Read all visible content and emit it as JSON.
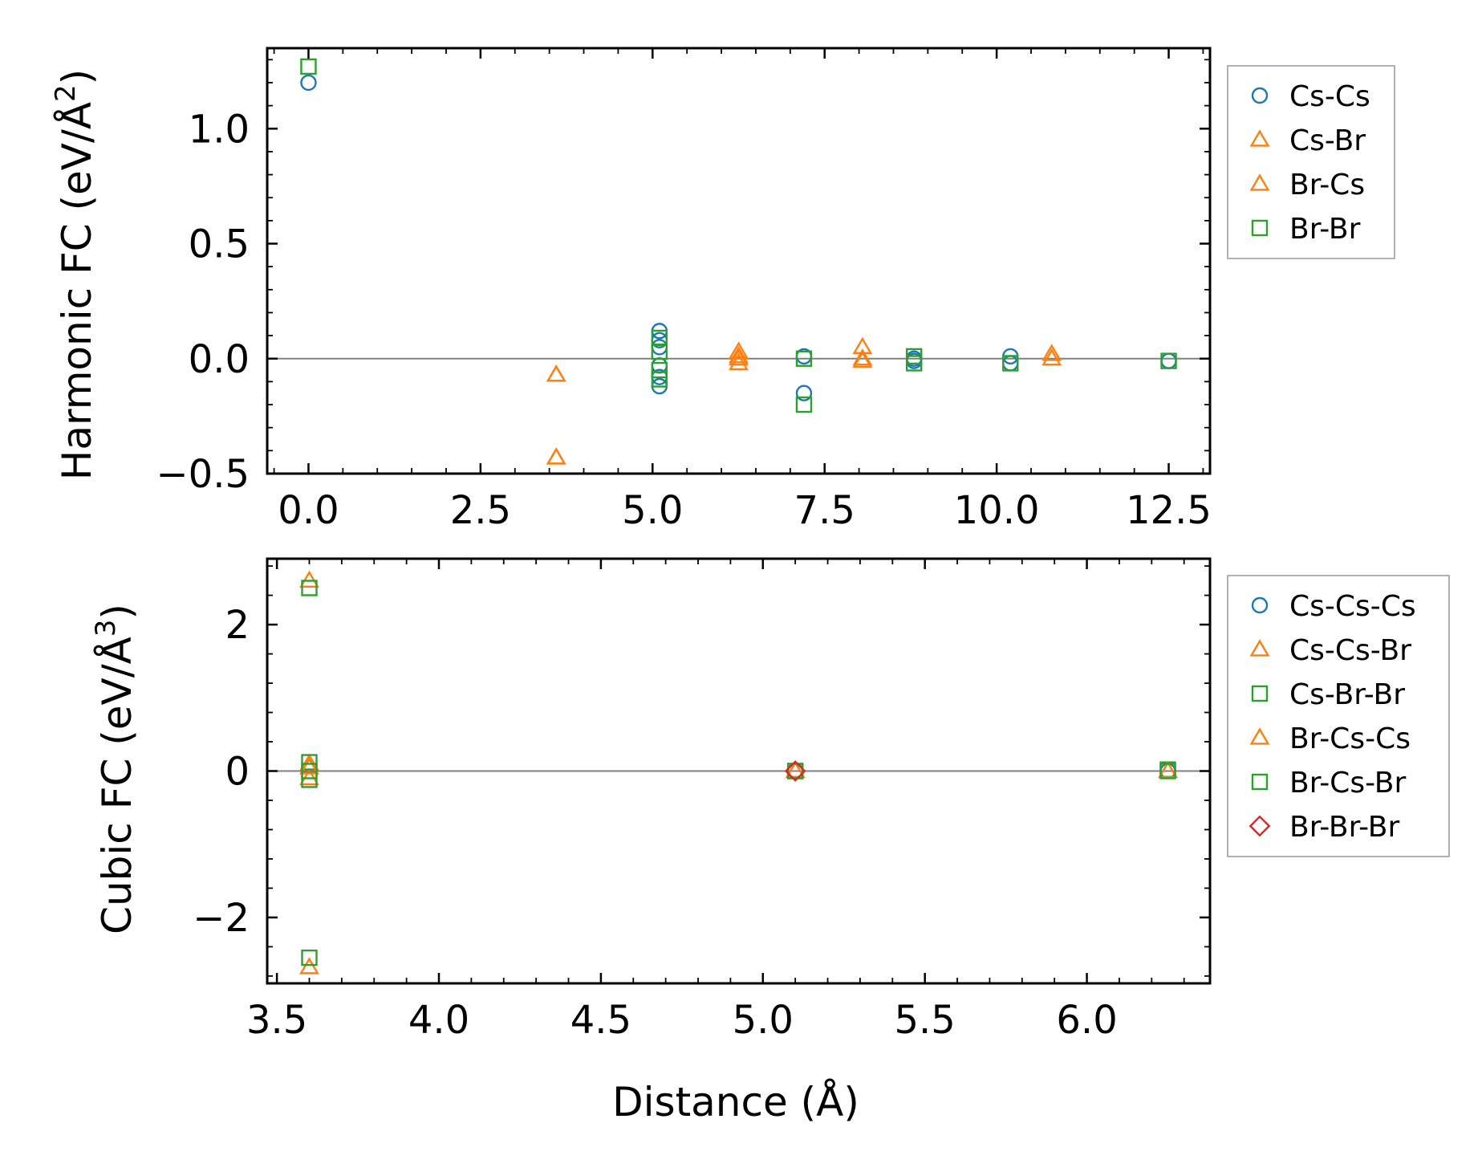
{
  "chart_data": [
    {
      "type": "scatter",
      "panel": "top",
      "ylabel": "Harmonic FC (eV/Å²)",
      "ylabel_main": "Harmonic FC (eV/Å",
      "ylabel_sup": "2",
      "ylabel_end": ")",
      "xlabel": "",
      "xlim": [
        -0.6,
        13.1
      ],
      "ylim": [
        -0.5,
        1.35
      ],
      "x_ticks": [
        0.0,
        2.5,
        5.0,
        7.5,
        10.0,
        12.5
      ],
      "x_tick_labels": [
        "0.0",
        "2.5",
        "5.0",
        "7.5",
        "10.0",
        "12.5"
      ],
      "y_ticks": [
        -0.5,
        0.0,
        0.5,
        1.0
      ],
      "y_tick_labels": [
        "−0.5",
        "0.0",
        "0.5",
        "1.0"
      ],
      "zero_line": true,
      "legend_position": "outside-right-top",
      "series": [
        {
          "name": "Cs-Cs",
          "marker": "circle",
          "color": "#1f77b4",
          "points": [
            [
              0.0,
              1.2
            ],
            [
              5.1,
              0.12
            ],
            [
              5.1,
              0.08
            ],
            [
              5.1,
              0.05
            ],
            [
              5.1,
              -0.03
            ],
            [
              5.1,
              -0.08
            ],
            [
              5.1,
              -0.12
            ],
            [
              7.2,
              0.01
            ],
            [
              7.2,
              -0.15
            ],
            [
              8.8,
              0.0
            ],
            [
              8.8,
              -0.01
            ],
            [
              10.2,
              0.01
            ],
            [
              10.2,
              -0.02
            ],
            [
              12.5,
              -0.01
            ]
          ]
        },
        {
          "name": "Cs-Br",
          "marker": "triangle",
          "color": "#ff7f0e",
          "points": [
            [
              3.6,
              -0.07
            ],
            [
              3.6,
              -0.43
            ],
            [
              6.25,
              0.03
            ],
            [
              6.25,
              0.01
            ],
            [
              6.25,
              -0.02
            ],
            [
              8.05,
              0.05
            ],
            [
              8.05,
              -0.01
            ],
            [
              10.8,
              0.02
            ]
          ]
        },
        {
          "name": "Br-Cs",
          "marker": "triangle",
          "color": "#ff7f0e",
          "points": [
            [
              3.6,
              -0.07
            ],
            [
              3.6,
              -0.43
            ],
            [
              6.25,
              0.0
            ],
            [
              8.05,
              0.0
            ],
            [
              10.8,
              0.0
            ]
          ]
        },
        {
          "name": "Br-Br",
          "marker": "square",
          "color": "#2ca02c",
          "points": [
            [
              0.0,
              1.27
            ],
            [
              5.1,
              0.09
            ],
            [
              5.1,
              0.03
            ],
            [
              5.1,
              -0.05
            ],
            [
              5.1,
              -0.09
            ],
            [
              7.2,
              0.0
            ],
            [
              7.2,
              -0.2
            ],
            [
              8.8,
              0.01
            ],
            [
              8.8,
              -0.02
            ],
            [
              10.2,
              -0.02
            ],
            [
              12.5,
              -0.01
            ]
          ]
        }
      ]
    },
    {
      "type": "scatter",
      "panel": "bottom",
      "ylabel": "Cubic FC (eV/Å³)",
      "ylabel_main": "Cubic FC (eV/Å",
      "ylabel_sup": "3",
      "ylabel_end": ")",
      "xlabel": "Distance (Å)",
      "xlim": [
        3.47,
        6.38
      ],
      "ylim": [
        -2.9,
        2.9
      ],
      "x_ticks": [
        3.5,
        4.0,
        4.5,
        5.0,
        5.5,
        6.0
      ],
      "x_tick_labels": [
        "3.5",
        "4.0",
        "4.5",
        "5.0",
        "5.5",
        "6.0"
      ],
      "y_ticks": [
        -2,
        0,
        2
      ],
      "y_tick_labels": [
        "−2",
        "0",
        "2"
      ],
      "zero_line": true,
      "legend_position": "outside-right-top",
      "series": [
        {
          "name": "Cs-Cs-Cs",
          "marker": "circle",
          "color": "#1f77b4",
          "points": [
            [
              5.1,
              0.0
            ],
            [
              6.25,
              0.0
            ]
          ]
        },
        {
          "name": "Cs-Cs-Br",
          "marker": "triangle",
          "color": "#ff7f0e",
          "points": [
            [
              3.6,
              2.6
            ],
            [
              3.6,
              0.1
            ],
            [
              3.6,
              -0.1
            ],
            [
              3.6,
              -2.68
            ],
            [
              5.1,
              0.0
            ],
            [
              6.25,
              0.0
            ]
          ]
        },
        {
          "name": "Cs-Br-Br",
          "marker": "square",
          "color": "#2ca02c",
          "points": [
            [
              3.6,
              2.5
            ],
            [
              3.6,
              0.12
            ],
            [
              3.6,
              -0.12
            ],
            [
              3.6,
              -2.55
            ],
            [
              5.1,
              0.0
            ],
            [
              6.25,
              0.02
            ]
          ]
        },
        {
          "name": "Br-Cs-Cs",
          "marker": "triangle",
          "color": "#ff7f0e",
          "points": [
            [
              3.6,
              0.05
            ],
            [
              5.1,
              0.0
            ],
            [
              6.25,
              0.0
            ]
          ]
        },
        {
          "name": "Br-Cs-Br",
          "marker": "square",
          "color": "#2ca02c",
          "points": [
            [
              3.6,
              0.0
            ],
            [
              5.1,
              0.0
            ],
            [
              6.25,
              0.0
            ]
          ]
        },
        {
          "name": "Br-Br-Br",
          "marker": "diamond",
          "color": "#d62728",
          "points": [
            [
              5.1,
              0.0
            ]
          ]
        }
      ]
    }
  ]
}
